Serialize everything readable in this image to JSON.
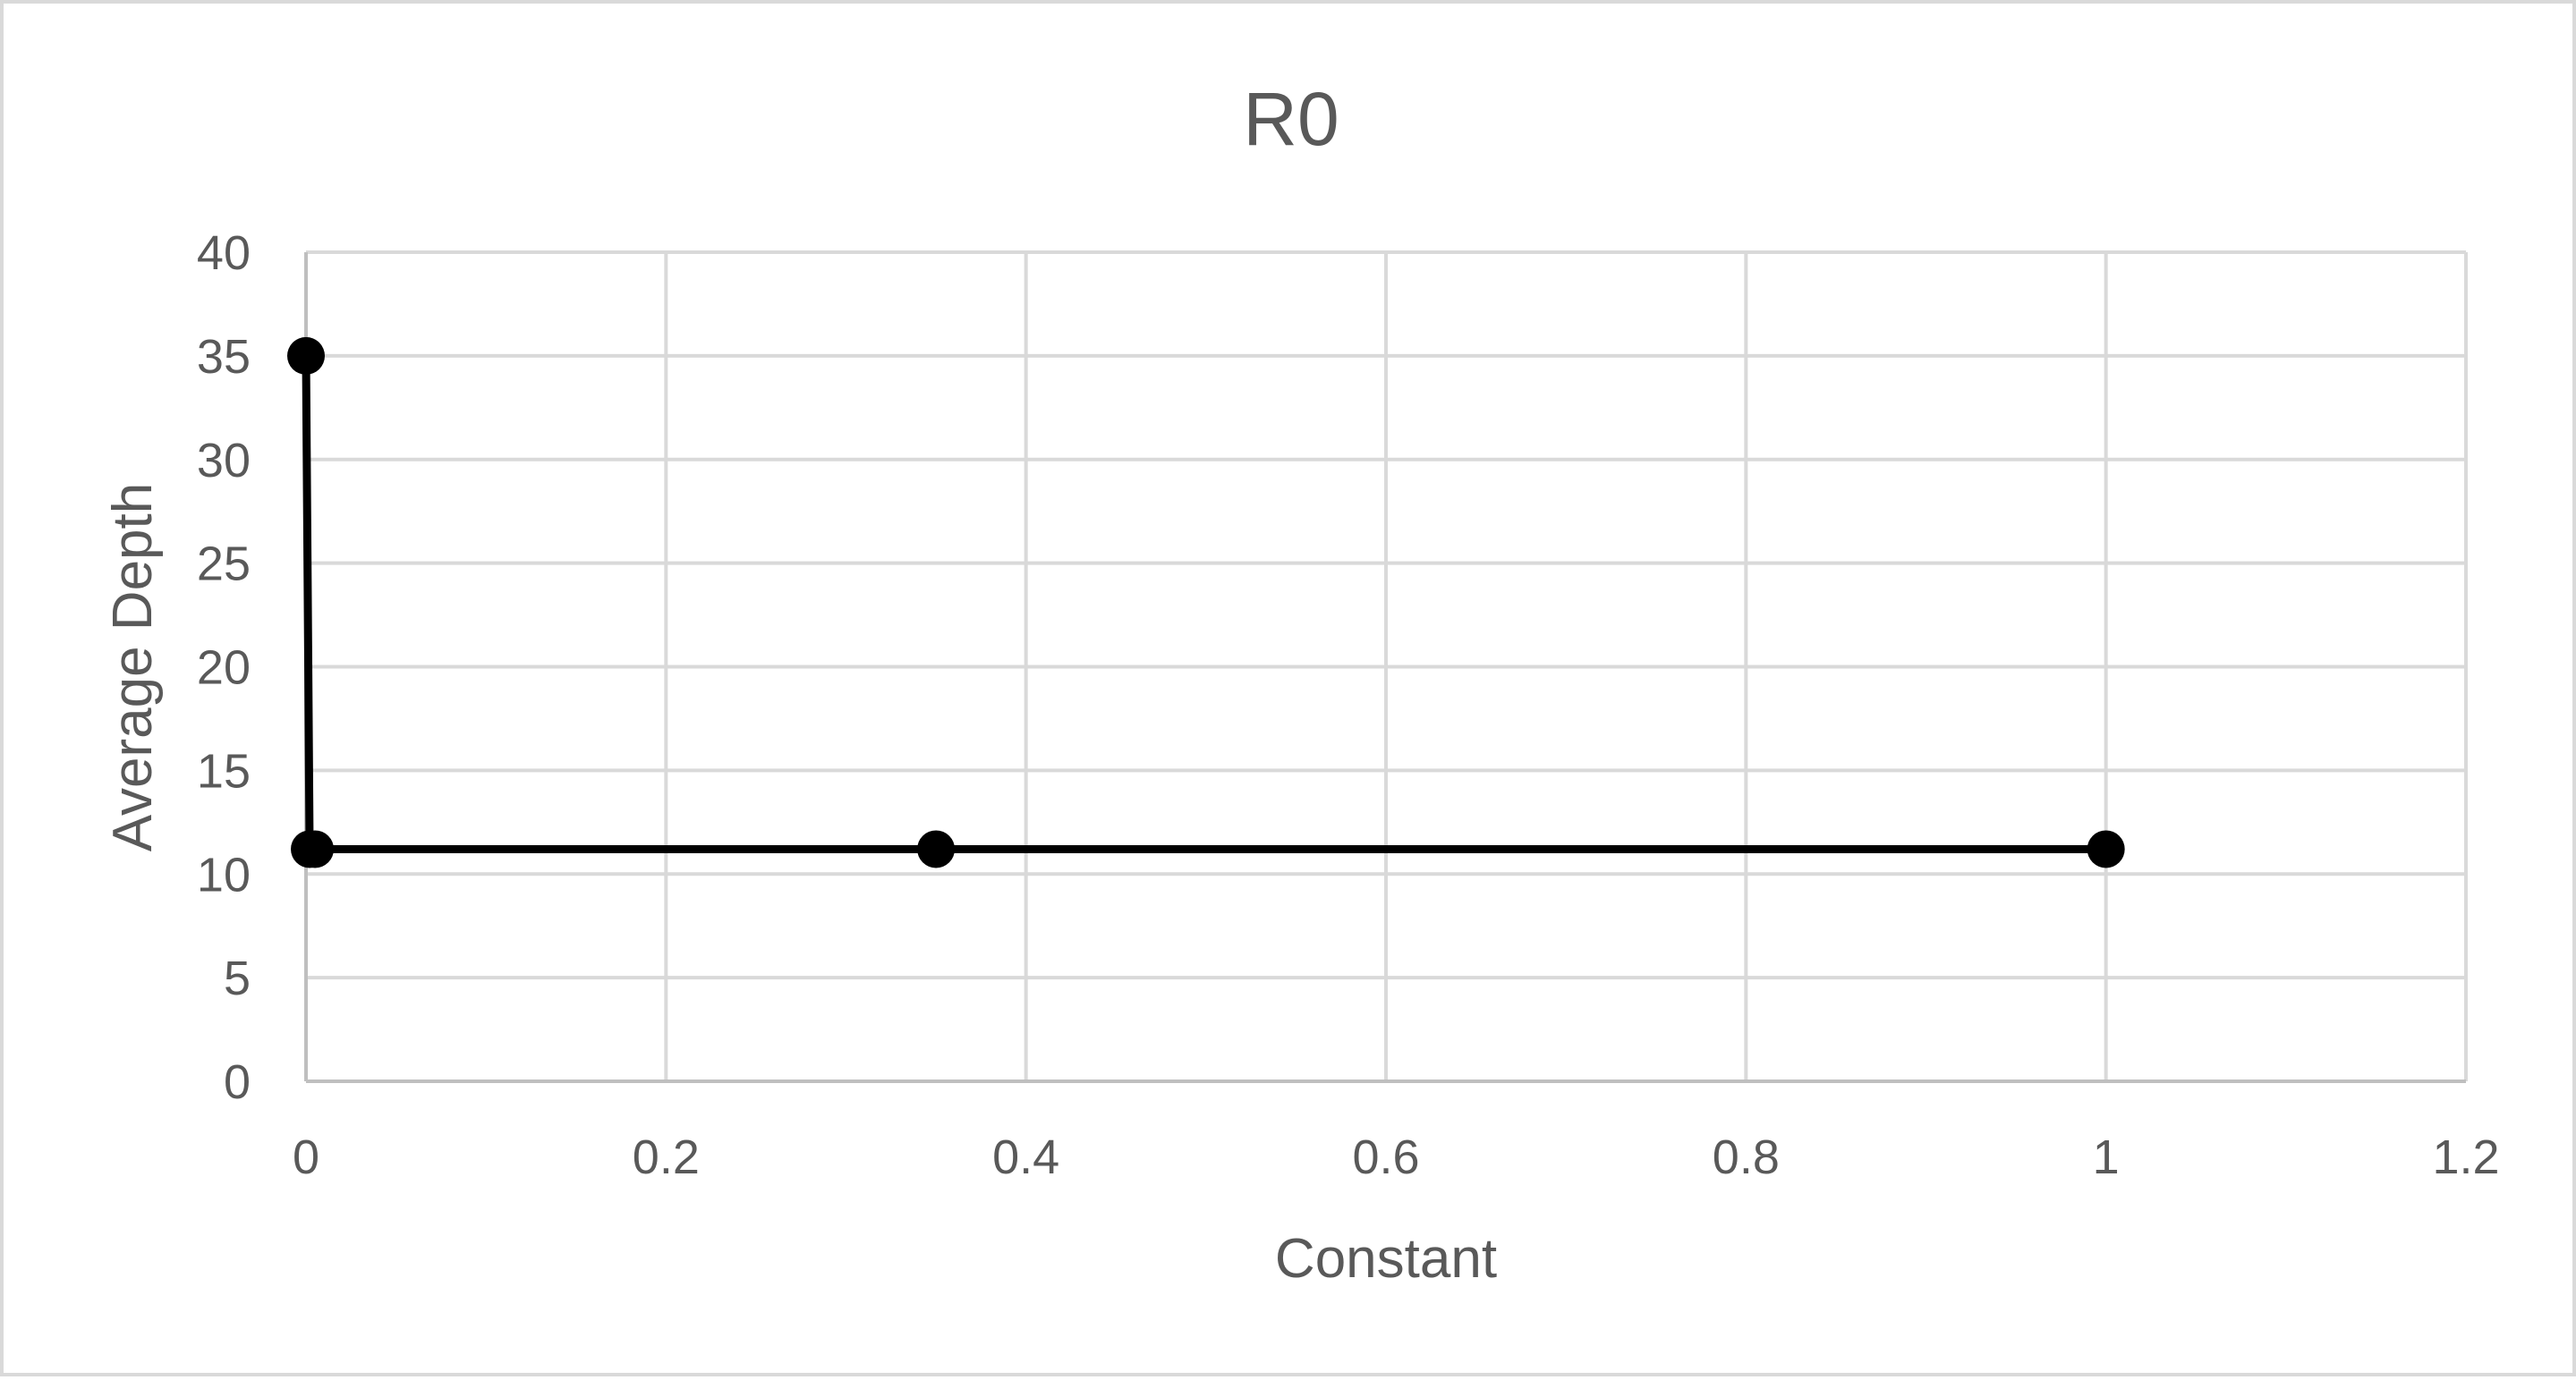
{
  "chart_data": {
    "type": "scatter",
    "title": "R0",
    "xlabel": "Constant",
    "ylabel": "Average Depth",
    "xlim": [
      0,
      1.2
    ],
    "ylim": [
      0,
      40
    ],
    "x_ticks": [
      0,
      0.2,
      0.4,
      0.6,
      0.8,
      1,
      1.2
    ],
    "x_tick_labels": [
      "0",
      "0.2",
      "0.4",
      "0.6",
      "0.8",
      "1",
      "1.2"
    ],
    "y_ticks": [
      0,
      5,
      10,
      15,
      20,
      25,
      30,
      35,
      40
    ],
    "y_tick_labels": [
      "0",
      "5",
      "10",
      "15",
      "20",
      "25",
      "30",
      "35",
      "40"
    ],
    "grid": true,
    "legend": "none",
    "series": [
      {
        "color": "#000000",
        "markers": "circle",
        "lines": "straight",
        "points": [
          {
            "x": 0,
            "y": 35
          },
          {
            "x": 0.002,
            "y": 11.2
          },
          {
            "x": 0.005,
            "y": 11.2
          },
          {
            "x": 0.35,
            "y": 11.2
          },
          {
            "x": 1,
            "y": 11.2
          }
        ]
      }
    ]
  }
}
